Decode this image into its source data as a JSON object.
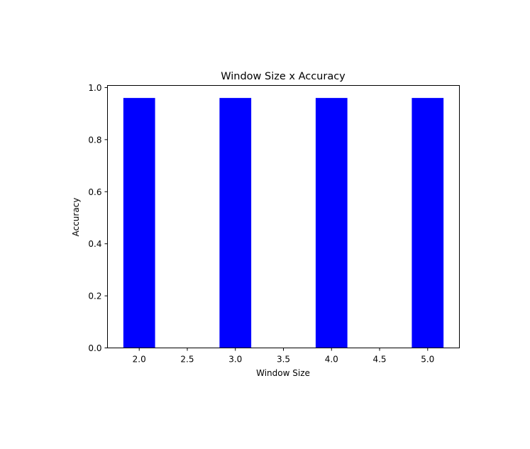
{
  "chart_data": {
    "type": "bar",
    "title": "Window Size x Accuracy",
    "xlabel": "Window Size",
    "ylabel": "Accuracy",
    "x": [
      2,
      3,
      4,
      5
    ],
    "values": [
      0.96,
      0.96,
      0.96,
      0.96
    ],
    "bar_width": 0.33,
    "xlim": [
      1.67,
      5.33
    ],
    "ylim": [
      0,
      1.008
    ],
    "xticks": [
      2.0,
      2.5,
      3.0,
      3.5,
      4.0,
      4.5,
      5.0
    ],
    "xtick_labels": [
      "2.0",
      "2.5",
      "3.0",
      "3.5",
      "4.0",
      "4.5",
      "5.0"
    ],
    "yticks": [
      0.0,
      0.2,
      0.4,
      0.6,
      0.8,
      1.0
    ],
    "ytick_labels": [
      "0.0",
      "0.2",
      "0.4",
      "0.6",
      "0.8",
      "1.0"
    ],
    "grid": false,
    "legend": "none",
    "bar_color": "#0000ff",
    "axis_color": "#000000"
  }
}
